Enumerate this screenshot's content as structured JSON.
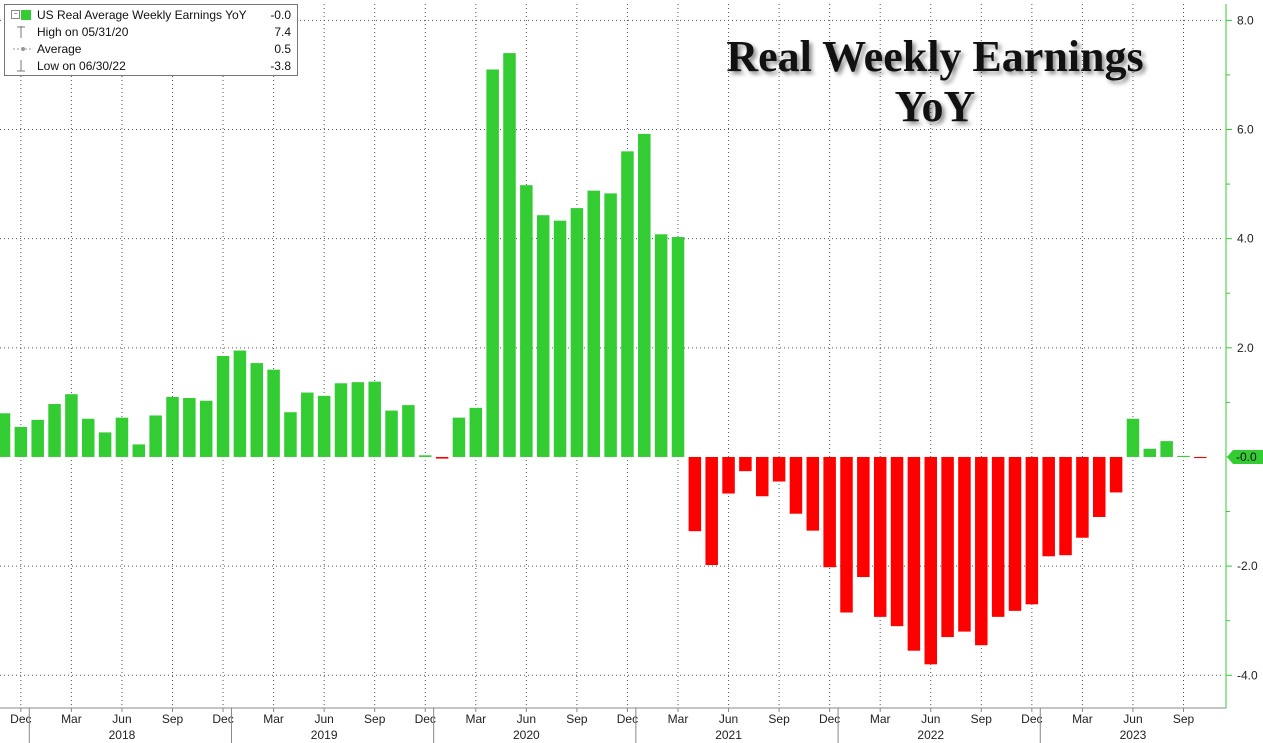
{
  "legend": {
    "series_label": "US Real Average Weekly Earnings YoY",
    "series_value": "-0.0",
    "high_label": "High on 05/31/20",
    "high_value": "7.4",
    "avg_label": "Average",
    "avg_value": "0.5",
    "low_label": "Low on 06/30/22",
    "low_value": "-3.8"
  },
  "title_line1": "Real Weekly Earnings",
  "title_line2": "YoY",
  "colors": {
    "positive": "#33cc33",
    "negative": "#ff0000",
    "axis": "#33cc33",
    "grid": "#555555",
    "last_value_tag": "#33cc33"
  },
  "chart_data": {
    "type": "bar",
    "title": "Real Weekly Earnings YoY",
    "series": [
      {
        "name": "US Real Average Weekly Earnings YoY"
      }
    ],
    "start_month": "2017-11",
    "values": [
      0.8,
      0.55,
      0.68,
      0.97,
      1.15,
      0.7,
      0.45,
      0.72,
      0.23,
      0.76,
      1.1,
      1.08,
      1.03,
      1.85,
      1.95,
      1.72,
      1.6,
      0.82,
      1.18,
      1.12,
      1.35,
      1.37,
      1.38,
      0.85,
      0.95,
      0.03,
      -0.03,
      0.72,
      0.9,
      7.1,
      7.4,
      4.98,
      4.43,
      4.33,
      4.56,
      4.88,
      4.83,
      5.6,
      5.92,
      4.08,
      4.03,
      -1.36,
      -1.98,
      -0.67,
      -0.26,
      -0.72,
      -0.45,
      -1.04,
      -1.35,
      -2.02,
      -2.85,
      -2.2,
      -2.93,
      -3.1,
      -3.55,
      -3.8,
      -3.3,
      -3.2,
      -3.45,
      -2.93,
      -2.82,
      -2.7,
      -1.82,
      -1.8,
      -1.48,
      -1.1,
      -0.65,
      0.7,
      0.15,
      0.29,
      0.02,
      -0.02
    ],
    "ylim": [
      -4.6,
      8.3
    ],
    "yticks": [
      -4.0,
      -2.0,
      0,
      2.0,
      4.0,
      6.0,
      8.0
    ],
    "ytick_labels": [
      "-4.0",
      "-2.0",
      "",
      "2.0",
      "4.0",
      "6.0",
      "8.0"
    ],
    "last_value_label": "-0.0",
    "month_ticks": [
      {
        "month": "2017-12",
        "label": "Dec"
      },
      {
        "month": "2018-03",
        "label": "Mar"
      },
      {
        "month": "2018-06",
        "label": "Jun"
      },
      {
        "month": "2018-09",
        "label": "Sep"
      },
      {
        "month": "2018-12",
        "label": "Dec"
      },
      {
        "month": "2019-03",
        "label": "Mar"
      },
      {
        "month": "2019-06",
        "label": "Jun"
      },
      {
        "month": "2019-09",
        "label": "Sep"
      },
      {
        "month": "2019-12",
        "label": "Dec"
      },
      {
        "month": "2020-03",
        "label": "Mar"
      },
      {
        "month": "2020-06",
        "label": "Jun"
      },
      {
        "month": "2020-09",
        "label": "Sep"
      },
      {
        "month": "2020-12",
        "label": "Dec"
      },
      {
        "month": "2021-03",
        "label": "Mar"
      },
      {
        "month": "2021-06",
        "label": "Jun"
      },
      {
        "month": "2021-09",
        "label": "Sep"
      },
      {
        "month": "2021-12",
        "label": "Dec"
      },
      {
        "month": "2022-03",
        "label": "Mar"
      },
      {
        "month": "2022-06",
        "label": "Jun"
      },
      {
        "month": "2022-09",
        "label": "Sep"
      },
      {
        "month": "2022-12",
        "label": "Dec"
      },
      {
        "month": "2023-03",
        "label": "Mar"
      },
      {
        "month": "2023-06",
        "label": "Jun"
      },
      {
        "month": "2023-09",
        "label": "Sep"
      }
    ],
    "year_labels": [
      {
        "month": "2018-06",
        "label": "2018"
      },
      {
        "month": "2019-06",
        "label": "2019"
      },
      {
        "month": "2020-06",
        "label": "2020"
      },
      {
        "month": "2021-06",
        "label": "2021"
      },
      {
        "month": "2022-06",
        "label": "2022"
      },
      {
        "month": "2023-06",
        "label": "2023"
      }
    ],
    "grid": true,
    "legend_position": "top-left",
    "yaxis_position": "right"
  }
}
